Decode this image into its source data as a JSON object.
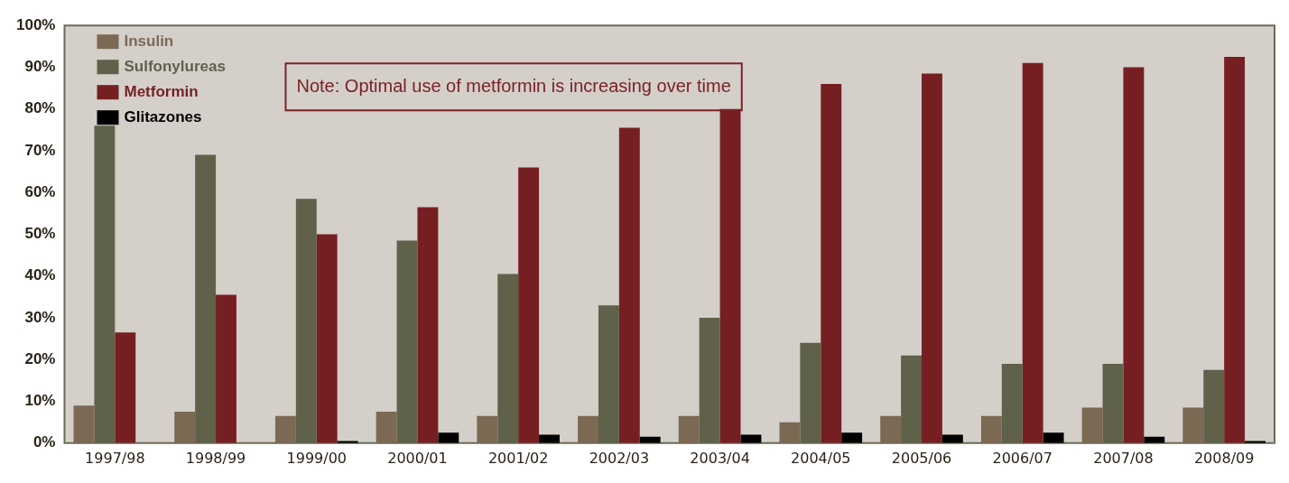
{
  "chart_data": {
    "type": "bar",
    "categories": [
      "1997/98",
      "1998/99",
      "1999/00",
      "2000/01",
      "2001/02",
      "2002/03",
      "2003/04",
      "2004/05",
      "2005/06",
      "2006/07",
      "2007/08",
      "2008/09"
    ],
    "series": [
      {
        "name": "Insulin",
        "color": "#7b6954",
        "values": [
          9,
          7.5,
          6.5,
          7.5,
          6.5,
          6.5,
          6.5,
          5,
          6.5,
          6.5,
          8.5,
          8.5
        ]
      },
      {
        "name": "Sulfonylureas",
        "color": "#5f614a",
        "values": [
          76,
          69,
          58.5,
          48.5,
          40.5,
          33,
          30,
          24,
          21,
          19,
          19,
          17.5
        ]
      },
      {
        "name": "Metformin",
        "color": "#761f23",
        "values": [
          26.5,
          35.5,
          50,
          56.5,
          66,
          75.5,
          80,
          86,
          88.5,
          91,
          90,
          92.5
        ]
      },
      {
        "name": "Glitazones",
        "color": "#000000",
        "values": [
          null,
          null,
          0.5,
          2.5,
          2,
          1.5,
          2,
          2.5,
          2,
          2.5,
          1.5,
          0.5
        ]
      }
    ],
    "ylim": [
      0,
      100
    ],
    "yticks": [
      {
        "value": 0,
        "label": "0%"
      },
      {
        "value": 10,
        "label": "10%"
      },
      {
        "value": 20,
        "label": "20%"
      },
      {
        "value": 30,
        "label": "30%"
      },
      {
        "value": 40,
        "label": "40%"
      },
      {
        "value": 50,
        "label": "50%"
      },
      {
        "value": 60,
        "label": "60%"
      },
      {
        "value": 70,
        "label": "70%"
      },
      {
        "value": 80,
        "label": "80%"
      },
      {
        "value": 90,
        "label": "90%"
      },
      {
        "value": 100,
        "label": "100%"
      }
    ],
    "grid": false,
    "legend": "top left",
    "annotations": [
      "Note: Optimal use of metformin is increasing over time"
    ]
  }
}
